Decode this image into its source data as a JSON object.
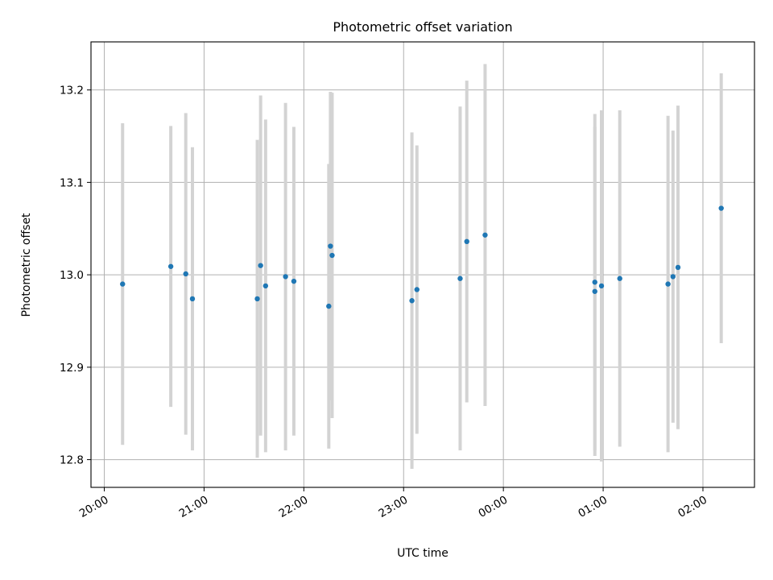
{
  "chart_data": {
    "type": "scatter",
    "title": "Photometric offset variation",
    "xlabel": "UTC time",
    "ylabel": "Photometric offset",
    "x_ticks": [
      "20:00",
      "21:00",
      "22:00",
      "23:00",
      "00:00",
      "01:00",
      "02:00"
    ],
    "y_ticks": [
      "12.8",
      "12.9",
      "13.0",
      "13.1",
      "13.2"
    ],
    "xlim": [
      "19:52",
      "02:31"
    ],
    "ylim": [
      12.77,
      13.252
    ],
    "grid": true,
    "marker_color": "#1f77b4",
    "errorbar_color": "#d3d3d3",
    "points": [
      {
        "x": "20:11",
        "y": 12.99,
        "err": 0.174
      },
      {
        "x": "20:40",
        "y": 13.009,
        "err": 0.152
      },
      {
        "x": "20:49",
        "y": 13.001,
        "err": 0.174
      },
      {
        "x": "20:53",
        "y": 12.974,
        "err": 0.164
      },
      {
        "x": "21:32",
        "y": 12.974,
        "err": 0.172
      },
      {
        "x": "21:34",
        "y": 13.01,
        "err": 0.184
      },
      {
        "x": "21:37",
        "y": 12.988,
        "err": 0.18
      },
      {
        "x": "21:49",
        "y": 12.998,
        "err": 0.188
      },
      {
        "x": "21:54",
        "y": 12.993,
        "err": 0.167
      },
      {
        "x": "22:15",
        "y": 12.966,
        "err": 0.154
      },
      {
        "x": "22:16",
        "y": 13.031,
        "err": 0.167
      },
      {
        "x": "22:17",
        "y": 13.021,
        "err": 0.176
      },
      {
        "x": "23:05",
        "y": 12.972,
        "err": 0.182
      },
      {
        "x": "23:08",
        "y": 12.984,
        "err": 0.156
      },
      {
        "x": "23:34",
        "y": 12.996,
        "err": 0.186
      },
      {
        "x": "23:38",
        "y": 13.036,
        "err": 0.174
      },
      {
        "x": "23:49",
        "y": 13.043,
        "err": 0.185
      },
      {
        "x": "00:55",
        "y": 12.982,
        "err": 0.178
      },
      {
        "x": "00:55",
        "y": 12.992,
        "err": 0.182
      },
      {
        "x": "00:59",
        "y": 12.988,
        "err": 0.19
      },
      {
        "x": "01:10",
        "y": 12.996,
        "err": 0.182
      },
      {
        "x": "01:39",
        "y": 12.99,
        "err": 0.182
      },
      {
        "x": "01:42",
        "y": 12.998,
        "err": 0.158
      },
      {
        "x": "01:45",
        "y": 13.008,
        "err": 0.175
      },
      {
        "x": "02:11",
        "y": 13.072,
        "err": 0.146
      }
    ]
  }
}
